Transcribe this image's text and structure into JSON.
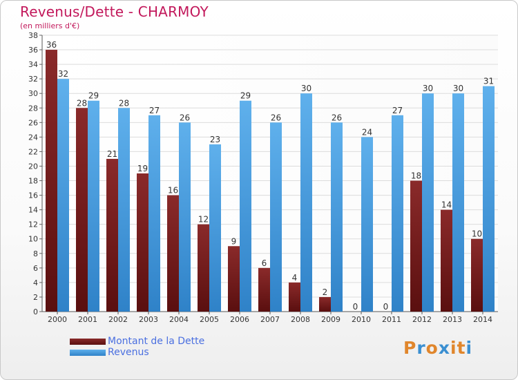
{
  "chart_data": {
    "type": "bar",
    "title": "Revenus/Dette - CHARMOY",
    "subtitle": "(en milliers d'€)",
    "categories": [
      "2000",
      "2001",
      "2002",
      "2003",
      "2004",
      "2005",
      "2006",
      "2007",
      "2008",
      "2009",
      "2010",
      "2011",
      "2012",
      "2013",
      "2014"
    ],
    "series": [
      {
        "name": "Montant de la Dette",
        "color": "#7a1c1c",
        "values": [
          36,
          28,
          21,
          19,
          16,
          12,
          9,
          6,
          4,
          2,
          0,
          0,
          18,
          14,
          10
        ]
      },
      {
        "name": "Revenus",
        "color": "#4fa3e3",
        "values": [
          32,
          29,
          28,
          27,
          26,
          23,
          29,
          26,
          30,
          26,
          24,
          27,
          30,
          30,
          31
        ]
      }
    ],
    "ylim": [
      0,
      38
    ],
    "yticks": [
      0,
      2,
      4,
      6,
      8,
      10,
      12,
      14,
      16,
      18,
      20,
      22,
      24,
      26,
      28,
      30,
      32,
      34,
      36,
      38
    ],
    "grid": true,
    "legend_position": "bottom-left"
  },
  "logo": {
    "letters": [
      "P",
      "r",
      "o",
      "x",
      "i",
      "t",
      "i"
    ],
    "colors": [
      "#e0862c",
      "#3a8fd1",
      "#e0862c",
      "#3a8fd1",
      "#e0862c",
      "#e0862c",
      "#3a8fd1"
    ]
  }
}
